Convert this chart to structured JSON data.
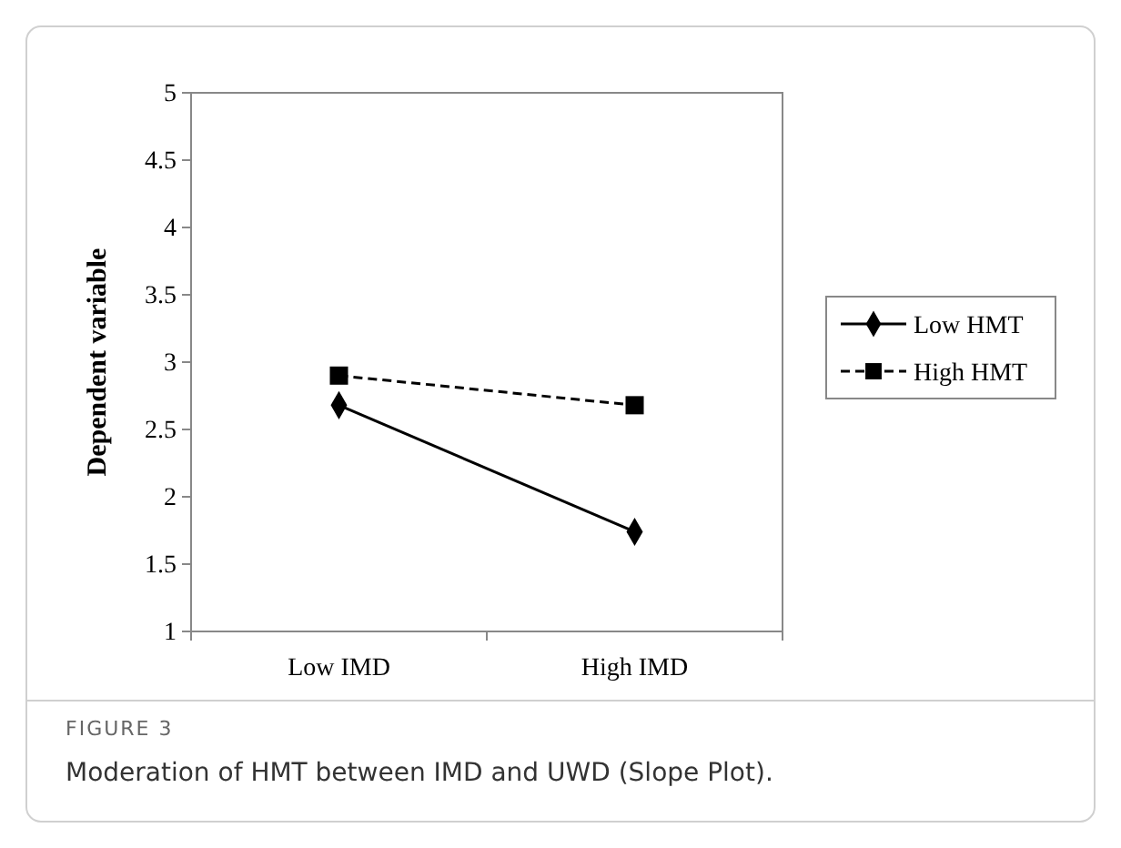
{
  "chart_data": {
    "type": "line",
    "ylabel": "Dependent variable",
    "categories": [
      "Low IMD",
      "High IMD"
    ],
    "series": [
      {
        "name": "Low HMT",
        "color": "#000000",
        "values": [
          2.68,
          1.74
        ],
        "marker": "diamond",
        "line_style": "solid"
      },
      {
        "name": "High HMT",
        "color": "#000000",
        "values": [
          2.9,
          2.68
        ],
        "marker": "square",
        "line_style": "dashed"
      }
    ],
    "ylim": [
      1,
      5
    ],
    "yticks": [
      1,
      1.5,
      2,
      2.5,
      3,
      3.5,
      4,
      4.5,
      5
    ],
    "grid": false,
    "legend": "right",
    "annotations": [
      "FIGURE 3",
      "Moderation of HMT between IMD and UWD (Slope Plot)."
    ]
  }
}
